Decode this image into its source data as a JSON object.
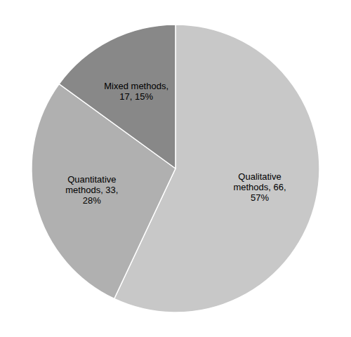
{
  "chart_data": {
    "type": "pie",
    "categories": [
      "Qualitative\nmethods, 66,\n57%",
      "Quantitative\nmethods, 33,\n28%",
      "Mixed methods,\n17, 15%"
    ],
    "values": [
      57,
      28,
      15
    ],
    "colors": [
      "#c8c8c8",
      "#b0b0b0",
      "#888888"
    ]
  }
}
